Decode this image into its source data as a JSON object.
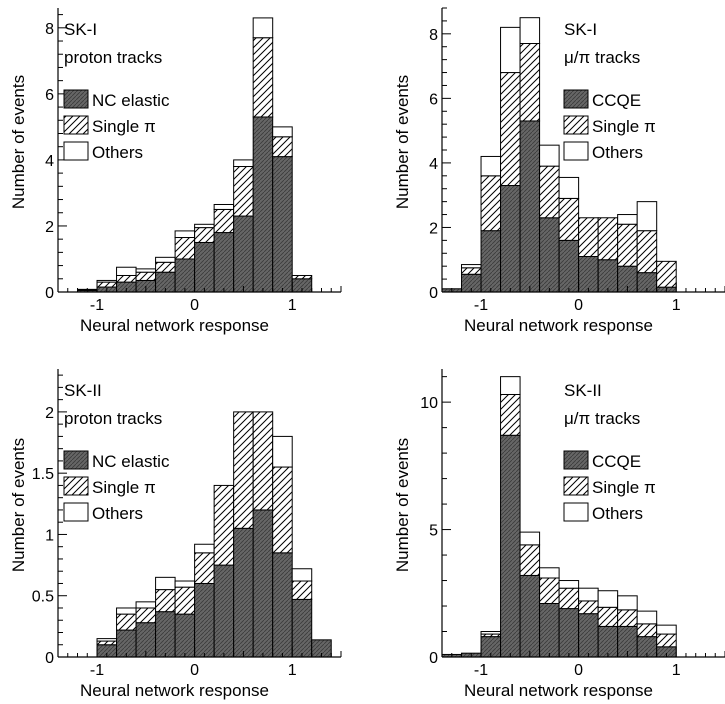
{
  "chart_data": [
    {
      "type": "bar",
      "title": "SK-I",
      "subtitle": "proton tracks",
      "xlabel": "Neural network response",
      "ylabel": "Number of events",
      "xlim": [
        -1.4,
        1.5
      ],
      "ylim": [
        0,
        8.6
      ],
      "xticks": [
        "-1",
        "0",
        "1"
      ],
      "yticks": [
        "0",
        "2",
        "4",
        "6",
        "8"
      ],
      "ytick_values": [
        0,
        2,
        4,
        6,
        8
      ],
      "bin_width": 0.2,
      "bin_starts": [
        -1.4,
        -1.2,
        -1.0,
        -0.8,
        -0.6,
        -0.4,
        -0.2,
        0.0,
        0.2,
        0.4,
        0.6,
        0.8,
        1.0,
        1.2
      ],
      "series": [
        {
          "name": "NC elastic",
          "values": [
            0.0,
            0.05,
            0.15,
            0.3,
            0.35,
            0.6,
            1.0,
            1.5,
            1.8,
            2.3,
            5.3,
            4.1,
            0.4,
            0.0
          ]
        },
        {
          "name": "Single π",
          "values": [
            0.0,
            0.03,
            0.15,
            0.2,
            0.25,
            0.3,
            0.65,
            0.45,
            0.7,
            1.5,
            2.4,
            0.6,
            0.1,
            0.0
          ]
        },
        {
          "name": "Others",
          "values": [
            0.0,
            0.0,
            0.05,
            0.25,
            0.1,
            0.15,
            0.2,
            0.1,
            0.15,
            0.2,
            0.6,
            0.3,
            0.0,
            0.0
          ]
        }
      ]
    },
    {
      "type": "bar",
      "title": "SK-I",
      "subtitle": "μ/π tracks",
      "xlabel": "Neural network response",
      "ylabel": "Number of events",
      "xlim": [
        -1.4,
        1.5
      ],
      "ylim": [
        0,
        8.8
      ],
      "xticks": [
        "-1",
        "0",
        "1"
      ],
      "yticks": [
        "0",
        "2",
        "4",
        "6",
        "8"
      ],
      "ytick_values": [
        0,
        2,
        4,
        6,
        8
      ],
      "bin_width": 0.2,
      "bin_starts": [
        -1.4,
        -1.2,
        -1.0,
        -0.8,
        -0.6,
        -0.4,
        -0.2,
        0.0,
        0.2,
        0.4,
        0.6,
        0.8,
        1.0,
        1.2
      ],
      "series": [
        {
          "name": "CCQE",
          "values": [
            0.1,
            0.55,
            1.9,
            3.3,
            5.3,
            2.3,
            1.6,
            1.1,
            1.0,
            0.8,
            0.6,
            0.15,
            0.0,
            0.0
          ]
        },
        {
          "name": "Single π",
          "values": [
            0.0,
            0.2,
            1.7,
            3.5,
            2.4,
            1.6,
            1.3,
            1.2,
            1.3,
            1.3,
            1.3,
            0.8,
            0.0,
            0.0
          ]
        },
        {
          "name": "Others",
          "values": [
            0.0,
            0.1,
            0.6,
            1.4,
            0.8,
            0.65,
            0.65,
            0.0,
            0.0,
            0.3,
            0.9,
            0.0,
            0.0,
            0.0
          ]
        }
      ]
    },
    {
      "type": "bar",
      "title": "SK-II",
      "subtitle": "proton tracks",
      "xlabel": "Neural network response",
      "ylabel": "Number of events",
      "xlim": [
        -1.4,
        1.5
      ],
      "ylim": [
        0,
        2.35
      ],
      "xticks": [
        "-1",
        "0",
        "1"
      ],
      "yticks": [
        "0",
        "0.5",
        "1",
        "1.5",
        "2"
      ],
      "ytick_values": [
        0,
        0.5,
        1,
        1.5,
        2
      ],
      "bin_width": 0.2,
      "bin_starts": [
        -1.4,
        -1.2,
        -1.0,
        -0.8,
        -0.6,
        -0.4,
        -0.2,
        0.0,
        0.2,
        0.4,
        0.6,
        0.8,
        1.0,
        1.2
      ],
      "series": [
        {
          "name": "NC elastic",
          "values": [
            0.0,
            0.0,
            0.1,
            0.22,
            0.28,
            0.37,
            0.35,
            0.6,
            0.75,
            1.05,
            1.2,
            0.85,
            0.47,
            0.14
          ]
        },
        {
          "name": "Single π",
          "values": [
            0.0,
            0.0,
            0.03,
            0.13,
            0.12,
            0.18,
            0.22,
            0.25,
            0.65,
            0.95,
            0.8,
            0.7,
            0.15,
            0.0
          ]
        },
        {
          "name": "Others",
          "values": [
            0.0,
            0.0,
            0.02,
            0.05,
            0.05,
            0.1,
            0.05,
            0.07,
            0.0,
            0.0,
            0.0,
            0.25,
            0.1,
            0.0
          ]
        }
      ]
    },
    {
      "type": "bar",
      "title": "SK-II",
      "subtitle": "μ/π tracks",
      "xlabel": "Neural network response",
      "ylabel": "Number of events",
      "xlim": [
        -1.4,
        1.5
      ],
      "ylim": [
        0,
        11.3
      ],
      "xticks": [
        "-1",
        "0",
        "1"
      ],
      "yticks": [
        "0",
        "5",
        "10"
      ],
      "ytick_values": [
        0,
        5,
        10
      ],
      "bin_width": 0.2,
      "bin_starts": [
        -1.4,
        -1.2,
        -1.0,
        -0.8,
        -0.6,
        -0.4,
        -0.2,
        0.0,
        0.2,
        0.4,
        0.6,
        0.8,
        1.0,
        1.2
      ],
      "series": [
        {
          "name": "CCQE",
          "values": [
            0.1,
            0.15,
            0.8,
            8.7,
            3.2,
            2.1,
            1.9,
            1.7,
            1.2,
            1.2,
            0.8,
            0.4,
            0.0,
            0.0
          ]
        },
        {
          "name": "Single π",
          "values": [
            0.0,
            0.0,
            0.1,
            1.6,
            1.2,
            1.0,
            0.8,
            0.5,
            0.75,
            0.65,
            0.5,
            0.5,
            0.0,
            0.0
          ]
        },
        {
          "name": "Others",
          "values": [
            0.0,
            0.0,
            0.1,
            0.7,
            0.5,
            0.4,
            0.3,
            0.5,
            0.65,
            0.55,
            0.5,
            0.35,
            0.0,
            0.0
          ]
        }
      ]
    }
  ]
}
